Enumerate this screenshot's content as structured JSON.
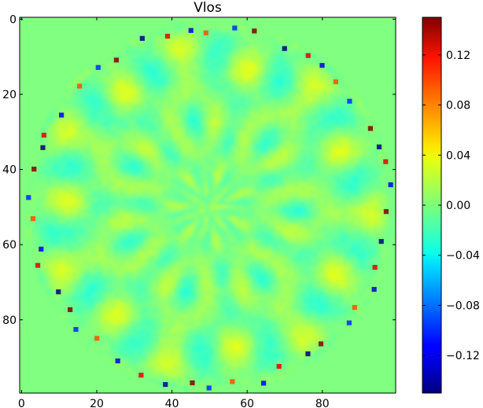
{
  "chart_data": {
    "type": "heatmap",
    "title": "Vlos",
    "xlabel": "",
    "ylabel": "",
    "xlim": [
      0,
      99
    ],
    "ylim": [
      99,
      0
    ],
    "x_ticks": [
      0,
      20,
      40,
      60,
      80
    ],
    "y_ticks": [
      0,
      20,
      40,
      60,
      80
    ],
    "grid": false,
    "colormap": "jet",
    "color_range": [
      -0.15,
      0.15
    ],
    "colorbar_ticks": [
      0.12,
      0.08,
      0.04,
      0.0,
      -0.04,
      -0.08,
      -0.12
    ],
    "colorbar_tick_labels": [
      "0.12",
      "0.08",
      "0.04",
      "0.00",
      "−0.04",
      "−0.08",
      "−0.12"
    ],
    "background_value": 0.0,
    "pattern": "circular aperture centred near (50, 50), radius about 49 pixels, filled with rosette-like ring structure; dark red / dark blue extreme dots along the rim",
    "colors": {
      "background": "#7dff7a",
      "frame": "#000000"
    }
  }
}
